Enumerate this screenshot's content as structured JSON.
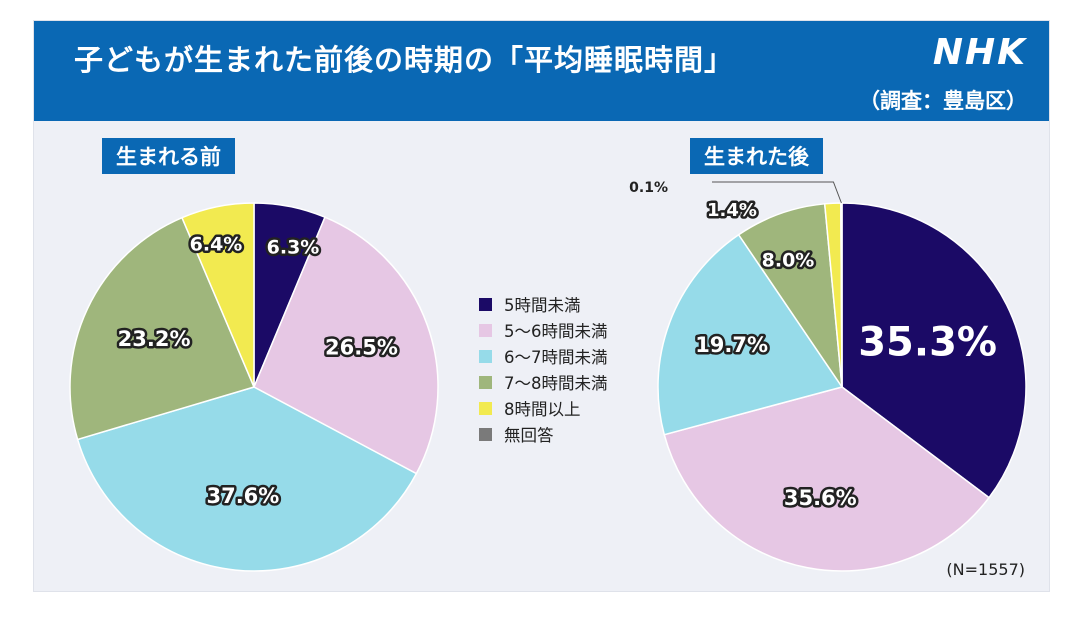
{
  "header": {
    "title": "子どもが生まれた前後の時期の「平均睡眠時間」",
    "subtitle": "（調査：豊島区）",
    "logo": "NHK"
  },
  "colors": {
    "header_bg": "#0a68b4",
    "panel_bg": "#eef0f6"
  },
  "legend": {
    "items": [
      {
        "label": "5時間未満",
        "color": "#1b0a66"
      },
      {
        "label": "5～6時間未満",
        "color": "#e6c7e4"
      },
      {
        "label": "6～7時間未満",
        "color": "#96dbe9"
      },
      {
        "label": "7～8時間未満",
        "color": "#9fb67c"
      },
      {
        "label": "8時間以上",
        "color": "#f2ea50"
      },
      {
        "label": "無回答",
        "color": "#7a7a7a"
      }
    ]
  },
  "note": "(N=1557)",
  "chart_data": [
    {
      "type": "pie",
      "title": "生まれる前",
      "categories": [
        "5時間未満",
        "5～6時間未満",
        "6～7時間未満",
        "7～8時間未満",
        "8時間以上"
      ],
      "values": [
        6.3,
        26.5,
        37.6,
        23.2,
        6.4
      ],
      "labels": [
        "6.3%",
        "26.5%",
        "37.6%",
        "23.2%",
        "6.4%"
      ]
    },
    {
      "type": "pie",
      "title": "生まれた後",
      "categories": [
        "5時間未満",
        "5～6時間未満",
        "6～7時間未満",
        "7～8時間未満",
        "8時間以上",
        "無回答"
      ],
      "values": [
        35.3,
        35.6,
        19.7,
        8.0,
        1.4,
        0.1
      ],
      "labels": [
        "35.3%",
        "35.6%",
        "19.7%",
        "8.0%",
        "1.4%",
        "0.1%"
      ]
    }
  ]
}
